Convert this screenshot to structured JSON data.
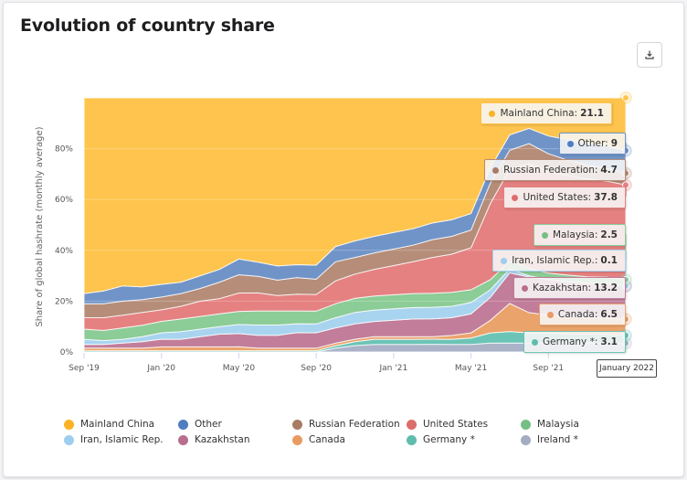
{
  "title": "Evolution of country share",
  "download_button": {
    "icon": "download-icon"
  },
  "chart_data": {
    "type": "area",
    "stacked": true,
    "title": "Evolution of country share",
    "xlabel": "",
    "ylabel": "Share of global hashrate (monthly average)",
    "ylim": [
      0,
      100
    ],
    "y_ticks": [
      "0%",
      "20%",
      "40%",
      "60%",
      "80%"
    ],
    "x_ticks": [
      "Sep '19",
      "Jan '20",
      "May '20",
      "Sep '20",
      "Jan '21",
      "May '21",
      "Sep '21"
    ],
    "x": [
      "2019-09",
      "2019-10",
      "2019-11",
      "2019-12",
      "2020-01",
      "2020-02",
      "2020-03",
      "2020-04",
      "2020-05",
      "2020-06",
      "2020-07",
      "2020-08",
      "2020-09",
      "2020-10",
      "2020-11",
      "2020-12",
      "2021-01",
      "2021-02",
      "2021-03",
      "2021-04",
      "2021-05",
      "2021-06",
      "2021-07",
      "2021-08",
      "2021-09",
      "2021-10",
      "2021-11",
      "2021-12",
      "2022-01"
    ],
    "legend_position": "bottom",
    "series": [
      {
        "name": "Ireland *",
        "color": "#aab3c8",
        "values": [
          0,
          0,
          0,
          0,
          0,
          0,
          0,
          0,
          0,
          0,
          0,
          0,
          0,
          1.5,
          2.5,
          3,
          3,
          3,
          3,
          3,
          3,
          3.5,
          3.5,
          3.5,
          3.5,
          3.5,
          3.5,
          3.5,
          3.5
        ]
      },
      {
        "name": "Germany *",
        "color": "#6cc4b6",
        "values": [
          0.5,
          0.5,
          0.5,
          0.5,
          0.5,
          0.5,
          0.5,
          0.5,
          0.5,
          0.5,
          0.5,
          0.5,
          0.5,
          1,
          1.5,
          2,
          2,
          2,
          2,
          2,
          2.5,
          4,
          4.5,
          4,
          4,
          3.5,
          3.5,
          3.5,
          3.1
        ]
      },
      {
        "name": "Canada",
        "color": "#eba36c",
        "values": [
          1,
          1,
          1,
          1,
          1.5,
          1.5,
          1.5,
          1.5,
          1.5,
          1,
          1,
          1,
          1,
          1,
          1,
          1,
          1,
          1,
          1,
          1.5,
          2,
          5,
          11,
          8,
          7,
          7,
          6.5,
          6.5,
          6.5
        ]
      },
      {
        "name": "Kazakhstan",
        "color": "#c17d99",
        "values": [
          1.5,
          1.5,
          2,
          2.5,
          3,
          3,
          4,
          5,
          5,
          5,
          5,
          6,
          6,
          6,
          6,
          6,
          6.5,
          7,
          7,
          7,
          7.5,
          9,
          12,
          14,
          14,
          13.5,
          13.5,
          13.5,
          13.2
        ]
      },
      {
        "name": "Iran, Islamic Rep.",
        "color": "#a9d4f0",
        "values": [
          2,
          1.5,
          1.5,
          2,
          2.5,
          3,
          3,
          3,
          3.5,
          4,
          4,
          3.5,
          3.5,
          4,
          4.5,
          4.5,
          4.5,
          4.5,
          4.5,
          4.5,
          4.5,
          3,
          1.5,
          0.5,
          0.1,
          0.1,
          0.1,
          0.1,
          0.1
        ]
      },
      {
        "name": "Malaysia",
        "color": "#8ccc97",
        "values": [
          4,
          4,
          4.5,
          4.5,
          4.5,
          5,
          5,
          5,
          5,
          5.5,
          5.5,
          5,
          5,
          5.5,
          5.5,
          5.5,
          5.5,
          5.5,
          5.5,
          5.5,
          5,
          4,
          3,
          3,
          2.5,
          2.5,
          2.5,
          2.5,
          2.5
        ]
      },
      {
        "name": "United States",
        "color": "#e58181",
        "values": [
          4.5,
          5,
          5,
          5,
          4.5,
          5,
          6,
          6,
          7,
          7,
          6,
          6.5,
          6.5,
          9,
          9.5,
          10.5,
          11.5,
          12.5,
          14,
          15,
          16.5,
          30,
          36,
          41,
          40,
          39,
          38.5,
          38,
          37.8
        ]
      },
      {
        "name": "Russian Federation",
        "color": "#b58d79",
        "values": [
          5.5,
          5.5,
          5.5,
          5,
          5,
          5,
          5,
          6.5,
          7,
          6.5,
          6,
          6.5,
          6,
          7.5,
          6.5,
          6.5,
          6.5,
          6.5,
          7,
          7,
          7,
          8,
          7.5,
          8,
          7,
          6,
          5.5,
          5,
          4.7
        ]
      },
      {
        "name": "Other",
        "color": "#7094c8",
        "values": [
          4,
          5,
          6,
          5,
          5,
          4.5,
          5,
          5,
          6,
          5.5,
          5.5,
          5,
          5.5,
          6,
          6.5,
          6.5,
          6.5,
          6.5,
          6.5,
          6.5,
          6.5,
          6,
          6,
          6,
          7,
          8,
          8.5,
          9,
          9
        ]
      },
      {
        "name": "Mainland China",
        "color": "#fec44d",
        "values": [
          77,
          76,
          74,
          74,
          73,
          72.5,
          70,
          67.5,
          61.5,
          64,
          65.5,
          65,
          65.5,
          58.5,
          56,
          54.5,
          53,
          51.5,
          49,
          48,
          45.5,
          27.5,
          14.5,
          12,
          15,
          16.4,
          17.9,
          18.9,
          21.1
        ]
      }
    ],
    "tooltip": {
      "header": "January 2022",
      "items": [
        {
          "name": "Mainland China",
          "value": "21.1"
        },
        {
          "name": "Other",
          "value": "9"
        },
        {
          "name": "Russian Federation",
          "value": "4.7"
        },
        {
          "name": "United States",
          "value": "37.8"
        },
        {
          "name": "Malaysia",
          "value": "2.5"
        },
        {
          "name": "Iran, Islamic Rep.",
          "value": "0.1"
        },
        {
          "name": "Kazakhstan",
          "value": "13.2"
        },
        {
          "name": "Canada",
          "value": "6.5"
        },
        {
          "name": "Germany *",
          "value": "3.1"
        }
      ]
    }
  },
  "legend": [
    {
      "label": "Mainland China",
      "color": "#fbb224"
    },
    {
      "label": "Other",
      "color": "#4f7dc2"
    },
    {
      "label": "Russian Federation",
      "color": "#a87c64"
    },
    {
      "label": "United States",
      "color": "#dd6c6c"
    },
    {
      "label": "Malaysia",
      "color": "#76bf84"
    },
    {
      "label": "Iran, Islamic Rep.",
      "color": "#9fcdf0"
    },
    {
      "label": "Kazakhstan",
      "color": "#b86f8e"
    },
    {
      "label": "Canada",
      "color": "#e89b62"
    },
    {
      "label": "Germany *",
      "color": "#5fbcae"
    },
    {
      "label": "Ireland *",
      "color": "#a3acc1"
    }
  ]
}
